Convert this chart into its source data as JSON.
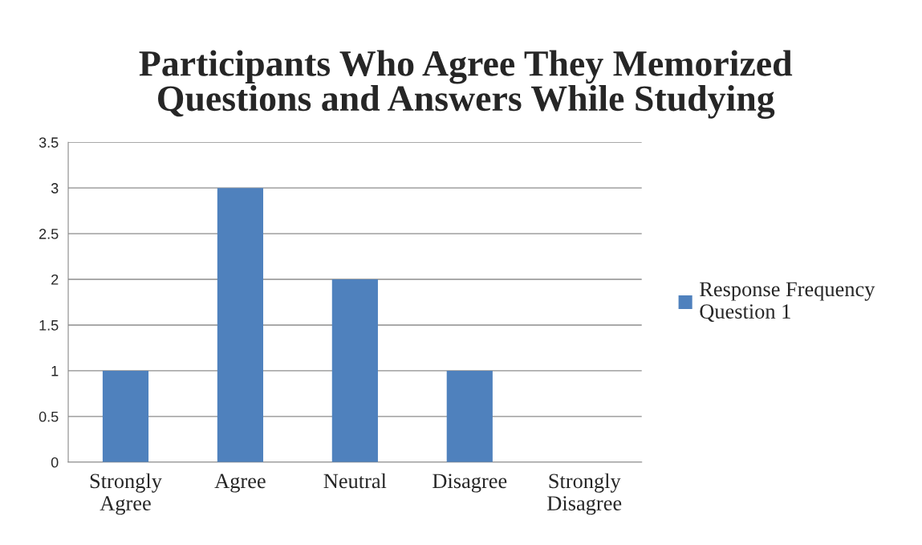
{
  "chart_data": {
    "type": "bar",
    "title": "Participants Who Agree They Memorized\nQuestions and Answers While Studying",
    "categories": [
      "Strongly\nAgree",
      "Agree",
      "Neutral",
      "Disagree",
      "Strongly\nDisagree"
    ],
    "series": [
      {
        "name": "Response Frequency\nQuestion 1",
        "color": "#4f81bd",
        "values": [
          1,
          3,
          2,
          1,
          0
        ]
      }
    ],
    "ylim": [
      0,
      3.5
    ],
    "yticks": [
      0,
      0.5,
      1,
      1.5,
      2,
      2.5,
      3,
      3.5
    ],
    "grid": "y",
    "legend": "right"
  }
}
